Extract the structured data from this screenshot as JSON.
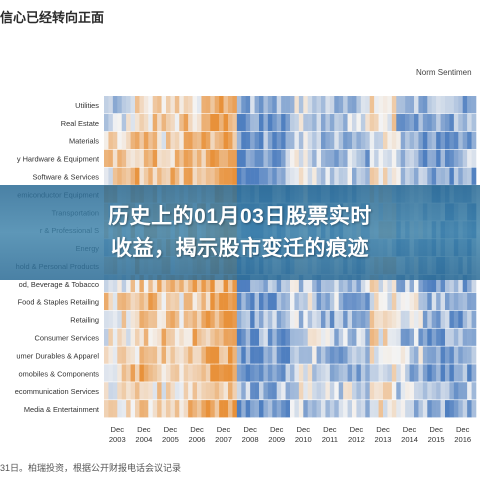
{
  "header": {
    "title": "信心已经转向正面"
  },
  "banner": {
    "line1": "历史上的01月03日股票实时",
    "line2": "收益，揭示股市变迁的痕迹"
  },
  "footer": {
    "note": "31日。柏瑞投资，根据公开财报电话会议记录"
  },
  "colors": {
    "positive": "#e8913a",
    "negative": "#4f7fc0",
    "neutral": "#f4f4f4"
  },
  "chart_data": {
    "type": "heatmap",
    "title": "",
    "legend_title": "Norm Sentimen",
    "xlabel": "",
    "ylabel": "",
    "x_ticks": [
      {
        "month": "Dec",
        "year": "2003"
      },
      {
        "month": "Dec",
        "year": "2004"
      },
      {
        "month": "Dec",
        "year": "2005"
      },
      {
        "month": "Dec",
        "year": "2006"
      },
      {
        "month": "Dec",
        "year": "2007"
      },
      {
        "month": "Dec",
        "year": "2008"
      },
      {
        "month": "Dec",
        "year": "2009"
      },
      {
        "month": "Dec",
        "year": "2010"
      },
      {
        "month": "Dec",
        "year": "2011"
      },
      {
        "month": "Dec",
        "year": "2012"
      },
      {
        "month": "Dec",
        "year": "2013"
      },
      {
        "month": "Dec",
        "year": "2014"
      },
      {
        "month": "Dec",
        "year": "2015"
      },
      {
        "month": "Dec",
        "year": "2016"
      }
    ],
    "rows": [
      {
        "label": "Utilities",
        "values": [
          -0.3,
          0.2,
          0.4,
          0.3,
          0.8,
          -0.6,
          -0.5,
          -0.2,
          -0.4,
          -0.3,
          0.1,
          -0.4,
          -0.6,
          -0.5
        ]
      },
      {
        "label": "Real Estate",
        "values": [
          -0.2,
          0.3,
          0.3,
          0.5,
          0.9,
          -0.8,
          -0.6,
          -0.1,
          -0.3,
          -0.2,
          0.2,
          -0.5,
          -0.7,
          -0.6
        ]
      },
      {
        "label": "Materials",
        "values": [
          0.1,
          0.4,
          0.2,
          0.6,
          0.7,
          -0.7,
          -0.7,
          -0.3,
          -0.5,
          -0.4,
          0.1,
          -0.3,
          -0.8,
          -0.7
        ]
      },
      {
        "label": "y Hardware & Equipment",
        "values": [
          0.3,
          0.5,
          0.4,
          0.6,
          0.8,
          -0.9,
          -0.6,
          -0.2,
          -0.4,
          -0.5,
          0.0,
          -0.4,
          -0.6,
          -0.5
        ]
      },
      {
        "label": "Software & Services",
        "values": [
          0.2,
          0.6,
          0.5,
          0.7,
          0.9,
          -0.7,
          -0.5,
          -0.1,
          -0.3,
          -0.3,
          0.2,
          -0.2,
          -0.5,
          -0.6
        ]
      },
      {
        "label": "emiconductor Equipment",
        "values": [
          0.4,
          0.5,
          0.3,
          0.5,
          0.8,
          -0.8,
          -0.7,
          -0.3,
          -0.6,
          -0.4,
          0.1,
          -0.3,
          -0.7,
          -0.6
        ]
      },
      {
        "label": "Transportation",
        "values": [
          0.1,
          0.3,
          0.4,
          0.4,
          0.7,
          -0.6,
          -0.6,
          -0.2,
          -0.5,
          -0.3,
          0.0,
          -0.4,
          -0.6,
          -0.7
        ]
      },
      {
        "label": "r & Professional S",
        "values": [
          0.2,
          0.4,
          0.3,
          0.5,
          0.8,
          -0.7,
          -0.5,
          -0.3,
          -0.4,
          -0.2,
          0.1,
          -0.3,
          -0.5,
          -0.6
        ]
      },
      {
        "label": "Energy",
        "values": [
          -0.2,
          0.3,
          0.5,
          0.6,
          0.7,
          -0.5,
          -0.6,
          -0.4,
          -0.6,
          -0.4,
          -0.1,
          -0.5,
          -0.8,
          -0.7
        ]
      },
      {
        "label": "hold & Personal Products",
        "values": [
          0.2,
          0.5,
          0.3,
          0.6,
          0.8,
          -0.6,
          -0.5,
          -0.2,
          -0.3,
          -0.4,
          0.2,
          -0.3,
          -0.6,
          -0.5
        ]
      },
      {
        "label": "od, Beverage & Tobacco",
        "values": [
          0.1,
          0.4,
          0.4,
          0.5,
          0.7,
          -0.7,
          -0.6,
          -0.3,
          -0.5,
          -0.3,
          0.1,
          -0.4,
          -0.7,
          -0.6
        ]
      },
      {
        "label": "Food & Staples Retailing",
        "values": [
          0.3,
          0.6,
          0.2,
          0.4,
          0.9,
          -0.8,
          -0.7,
          -0.1,
          -0.4,
          -0.5,
          0.0,
          -0.2,
          -0.6,
          -0.7
        ]
      },
      {
        "label": "Retailing",
        "values": [
          0.2,
          0.5,
          0.4,
          0.6,
          0.8,
          -0.6,
          -0.5,
          -0.3,
          -0.5,
          -0.4,
          0.1,
          -0.3,
          -0.5,
          -0.6
        ]
      },
      {
        "label": "Consumer Services",
        "values": [
          0.1,
          0.3,
          0.5,
          0.5,
          0.7,
          -0.7,
          -0.6,
          -0.2,
          -0.3,
          -0.3,
          0.2,
          -0.4,
          -0.7,
          -0.5
        ]
      },
      {
        "label": "umer Durables & Apparel",
        "values": [
          0.3,
          0.4,
          0.3,
          0.7,
          0.8,
          -0.9,
          -0.7,
          -0.3,
          -0.6,
          -0.4,
          0.1,
          -0.3,
          -0.6,
          -0.6
        ]
      },
      {
        "label": "omobiles & Components",
        "values": [
          0.2,
          0.6,
          0.4,
          0.5,
          0.9,
          -0.8,
          -0.6,
          -0.2,
          -0.5,
          -0.5,
          0.0,
          -0.4,
          -0.8,
          -0.7
        ]
      },
      {
        "label": "ecommunication Services",
        "values": [
          0.1,
          0.3,
          0.2,
          0.4,
          0.6,
          -0.5,
          -0.5,
          -0.1,
          -0.3,
          -0.2,
          0.1,
          -0.3,
          -0.5,
          -0.4
        ]
      },
      {
        "label": "Media & Entertainment",
        "values": [
          0.2,
          0.4,
          0.3,
          0.6,
          0.8,
          -0.7,
          -0.6,
          -0.3,
          -0.4,
          -0.3,
          0.2,
          -0.3,
          -0.6,
          -0.7
        ]
      }
    ]
  }
}
